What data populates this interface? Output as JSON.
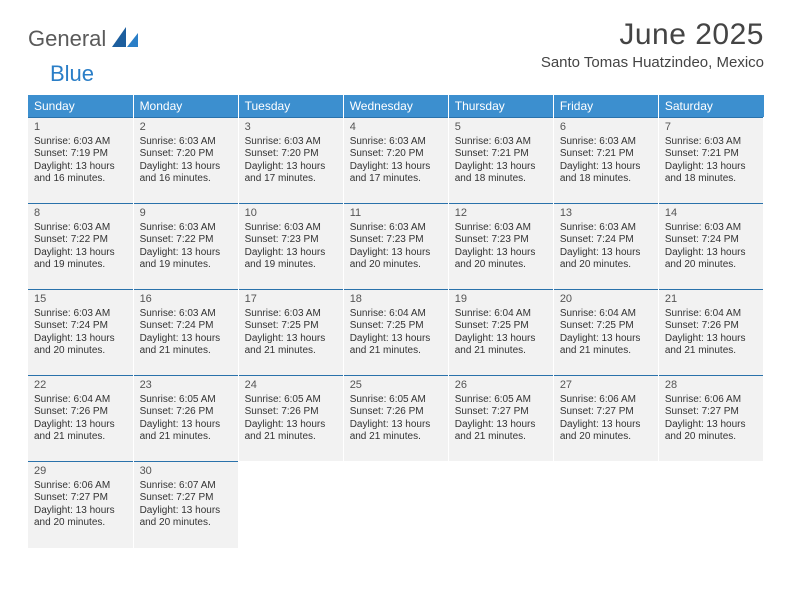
{
  "brand": {
    "part1": "General",
    "part2": "Blue"
  },
  "colors": {
    "header_bg": "#3c8fcf",
    "header_text": "#ffffff",
    "row_bg": "#f2f2f2",
    "row_border": "#2a72ab",
    "logo_gray": "#5a5a5a",
    "logo_blue": "#2a7ec7"
  },
  "title": "June 2025",
  "location": "Santo Tomas Huatzindeo, Mexico",
  "weekdays": [
    "Sunday",
    "Monday",
    "Tuesday",
    "Wednesday",
    "Thursday",
    "Friday",
    "Saturday"
  ],
  "weeks": [
    [
      {
        "n": "1",
        "sr": "Sunrise: 6:03 AM",
        "ss": "Sunset: 7:19 PM",
        "d1": "Daylight: 13 hours",
        "d2": "and 16 minutes."
      },
      {
        "n": "2",
        "sr": "Sunrise: 6:03 AM",
        "ss": "Sunset: 7:20 PM",
        "d1": "Daylight: 13 hours",
        "d2": "and 16 minutes."
      },
      {
        "n": "3",
        "sr": "Sunrise: 6:03 AM",
        "ss": "Sunset: 7:20 PM",
        "d1": "Daylight: 13 hours",
        "d2": "and 17 minutes."
      },
      {
        "n": "4",
        "sr": "Sunrise: 6:03 AM",
        "ss": "Sunset: 7:20 PM",
        "d1": "Daylight: 13 hours",
        "d2": "and 17 minutes."
      },
      {
        "n": "5",
        "sr": "Sunrise: 6:03 AM",
        "ss": "Sunset: 7:21 PM",
        "d1": "Daylight: 13 hours",
        "d2": "and 18 minutes."
      },
      {
        "n": "6",
        "sr": "Sunrise: 6:03 AM",
        "ss": "Sunset: 7:21 PM",
        "d1": "Daylight: 13 hours",
        "d2": "and 18 minutes."
      },
      {
        "n": "7",
        "sr": "Sunrise: 6:03 AM",
        "ss": "Sunset: 7:21 PM",
        "d1": "Daylight: 13 hours",
        "d2": "and 18 minutes."
      }
    ],
    [
      {
        "n": "8",
        "sr": "Sunrise: 6:03 AM",
        "ss": "Sunset: 7:22 PM",
        "d1": "Daylight: 13 hours",
        "d2": "and 19 minutes."
      },
      {
        "n": "9",
        "sr": "Sunrise: 6:03 AM",
        "ss": "Sunset: 7:22 PM",
        "d1": "Daylight: 13 hours",
        "d2": "and 19 minutes."
      },
      {
        "n": "10",
        "sr": "Sunrise: 6:03 AM",
        "ss": "Sunset: 7:23 PM",
        "d1": "Daylight: 13 hours",
        "d2": "and 19 minutes."
      },
      {
        "n": "11",
        "sr": "Sunrise: 6:03 AM",
        "ss": "Sunset: 7:23 PM",
        "d1": "Daylight: 13 hours",
        "d2": "and 20 minutes."
      },
      {
        "n": "12",
        "sr": "Sunrise: 6:03 AM",
        "ss": "Sunset: 7:23 PM",
        "d1": "Daylight: 13 hours",
        "d2": "and 20 minutes."
      },
      {
        "n": "13",
        "sr": "Sunrise: 6:03 AM",
        "ss": "Sunset: 7:24 PM",
        "d1": "Daylight: 13 hours",
        "d2": "and 20 minutes."
      },
      {
        "n": "14",
        "sr": "Sunrise: 6:03 AM",
        "ss": "Sunset: 7:24 PM",
        "d1": "Daylight: 13 hours",
        "d2": "and 20 minutes."
      }
    ],
    [
      {
        "n": "15",
        "sr": "Sunrise: 6:03 AM",
        "ss": "Sunset: 7:24 PM",
        "d1": "Daylight: 13 hours",
        "d2": "and 20 minutes."
      },
      {
        "n": "16",
        "sr": "Sunrise: 6:03 AM",
        "ss": "Sunset: 7:24 PM",
        "d1": "Daylight: 13 hours",
        "d2": "and 21 minutes."
      },
      {
        "n": "17",
        "sr": "Sunrise: 6:03 AM",
        "ss": "Sunset: 7:25 PM",
        "d1": "Daylight: 13 hours",
        "d2": "and 21 minutes."
      },
      {
        "n": "18",
        "sr": "Sunrise: 6:04 AM",
        "ss": "Sunset: 7:25 PM",
        "d1": "Daylight: 13 hours",
        "d2": "and 21 minutes."
      },
      {
        "n": "19",
        "sr": "Sunrise: 6:04 AM",
        "ss": "Sunset: 7:25 PM",
        "d1": "Daylight: 13 hours",
        "d2": "and 21 minutes."
      },
      {
        "n": "20",
        "sr": "Sunrise: 6:04 AM",
        "ss": "Sunset: 7:25 PM",
        "d1": "Daylight: 13 hours",
        "d2": "and 21 minutes."
      },
      {
        "n": "21",
        "sr": "Sunrise: 6:04 AM",
        "ss": "Sunset: 7:26 PM",
        "d1": "Daylight: 13 hours",
        "d2": "and 21 minutes."
      }
    ],
    [
      {
        "n": "22",
        "sr": "Sunrise: 6:04 AM",
        "ss": "Sunset: 7:26 PM",
        "d1": "Daylight: 13 hours",
        "d2": "and 21 minutes."
      },
      {
        "n": "23",
        "sr": "Sunrise: 6:05 AM",
        "ss": "Sunset: 7:26 PM",
        "d1": "Daylight: 13 hours",
        "d2": "and 21 minutes."
      },
      {
        "n": "24",
        "sr": "Sunrise: 6:05 AM",
        "ss": "Sunset: 7:26 PM",
        "d1": "Daylight: 13 hours",
        "d2": "and 21 minutes."
      },
      {
        "n": "25",
        "sr": "Sunrise: 6:05 AM",
        "ss": "Sunset: 7:26 PM",
        "d1": "Daylight: 13 hours",
        "d2": "and 21 minutes."
      },
      {
        "n": "26",
        "sr": "Sunrise: 6:05 AM",
        "ss": "Sunset: 7:27 PM",
        "d1": "Daylight: 13 hours",
        "d2": "and 21 minutes."
      },
      {
        "n": "27",
        "sr": "Sunrise: 6:06 AM",
        "ss": "Sunset: 7:27 PM",
        "d1": "Daylight: 13 hours",
        "d2": "and 20 minutes."
      },
      {
        "n": "28",
        "sr": "Sunrise: 6:06 AM",
        "ss": "Sunset: 7:27 PM",
        "d1": "Daylight: 13 hours",
        "d2": "and 20 minutes."
      }
    ],
    [
      {
        "n": "29",
        "sr": "Sunrise: 6:06 AM",
        "ss": "Sunset: 7:27 PM",
        "d1": "Daylight: 13 hours",
        "d2": "and 20 minutes."
      },
      {
        "n": "30",
        "sr": "Sunrise: 6:07 AM",
        "ss": "Sunset: 7:27 PM",
        "d1": "Daylight: 13 hours",
        "d2": "and 20 minutes."
      },
      null,
      null,
      null,
      null,
      null
    ]
  ]
}
